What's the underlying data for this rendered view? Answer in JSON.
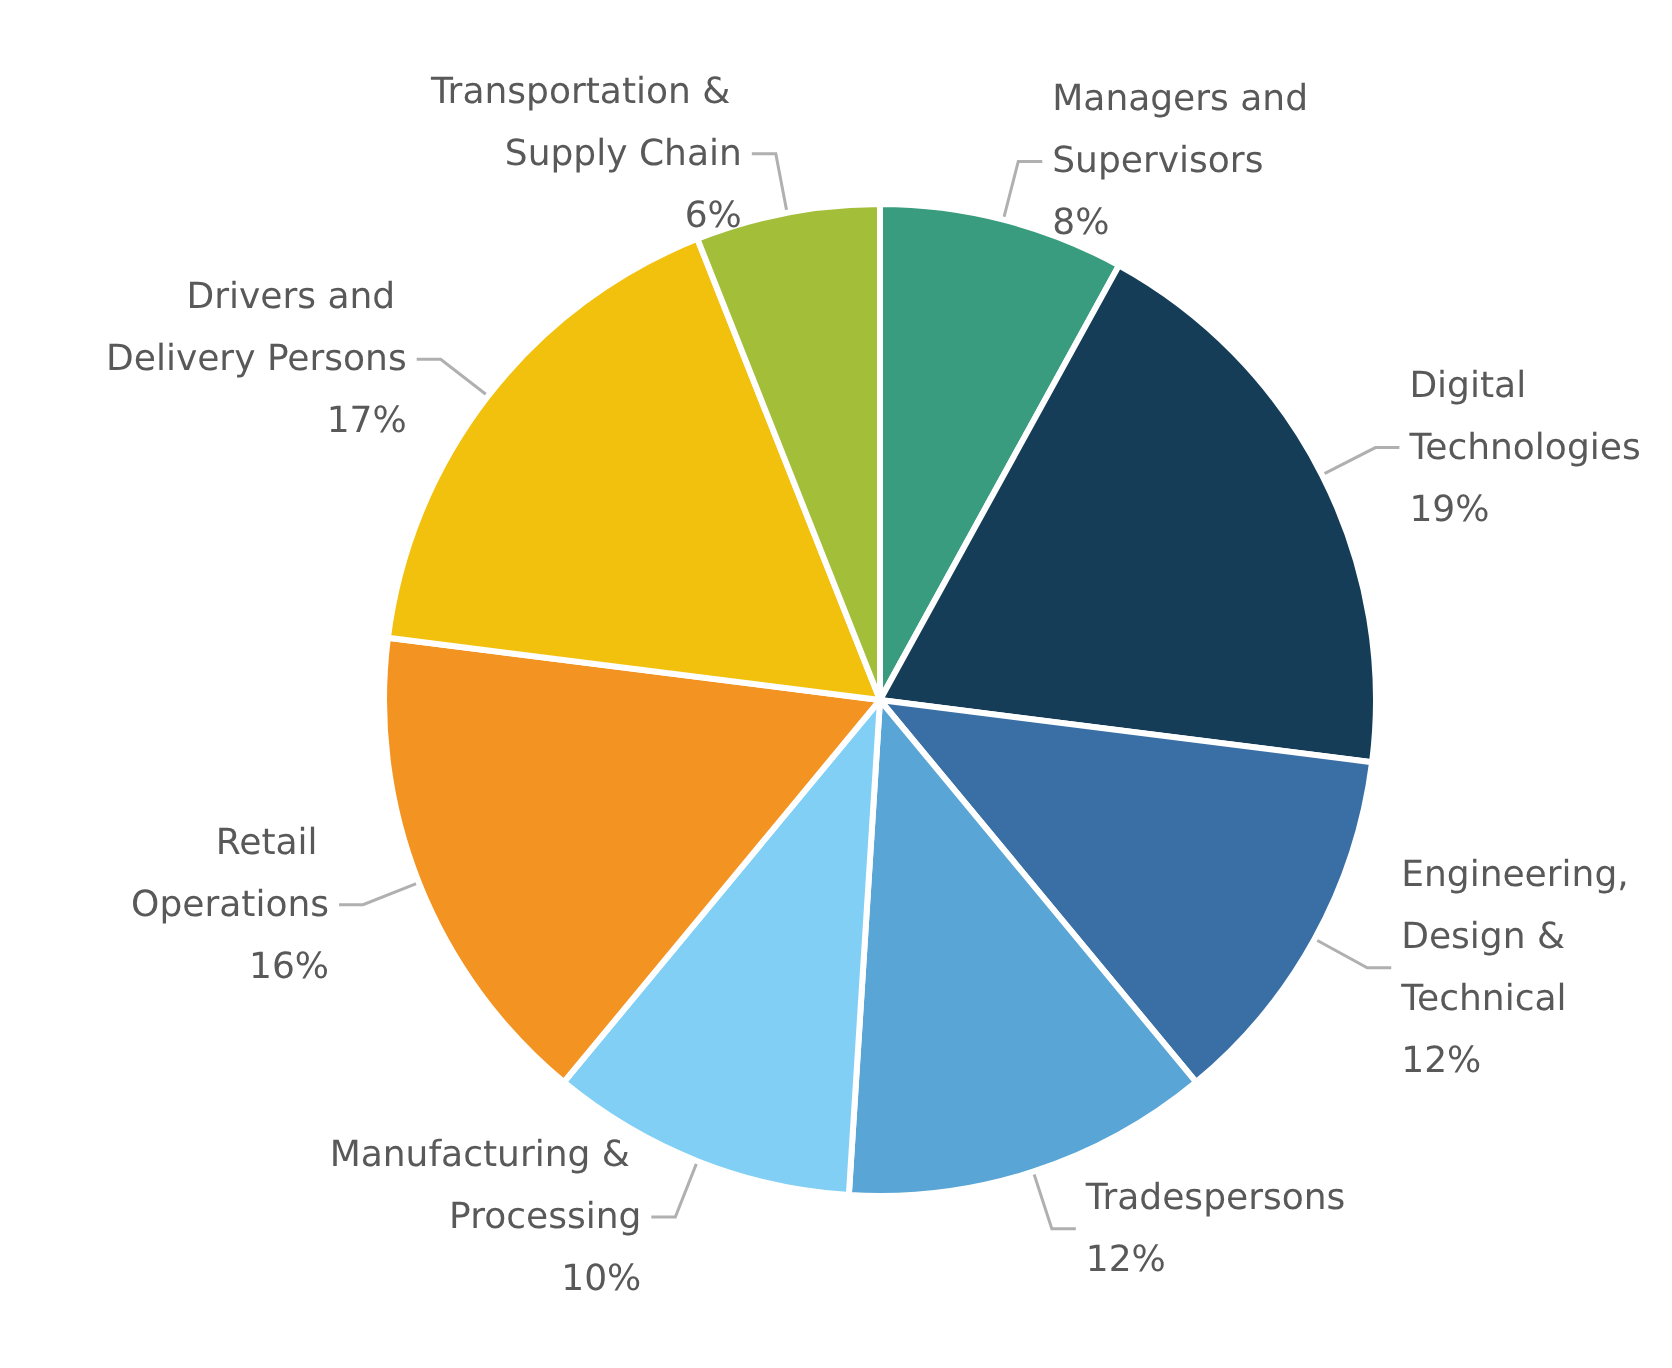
{
  "chart_data": {
    "type": "pie",
    "categories": [
      "Managers and Supervisors",
      "Digital Technologies",
      "Engineering, Design & Technical",
      "Tradespersons",
      "Manufacturing & Processing",
      "Retail Operations",
      "Drivers and Delivery Persons",
      "Transportation & Supply Chain"
    ],
    "values": [
      8,
      19,
      12,
      12,
      10,
      16,
      17,
      6
    ],
    "value_labels": [
      "8%",
      "19%",
      "12%",
      "12%",
      "10%",
      "16%",
      "17%",
      "6%"
    ],
    "colors": [
      "#3a9c7e",
      "#163d57",
      "#3a6fa6",
      "#58a5d6",
      "#82cff5",
      "#f39322",
      "#f2c10e",
      "#a3bf3a"
    ],
    "legend": false
  }
}
